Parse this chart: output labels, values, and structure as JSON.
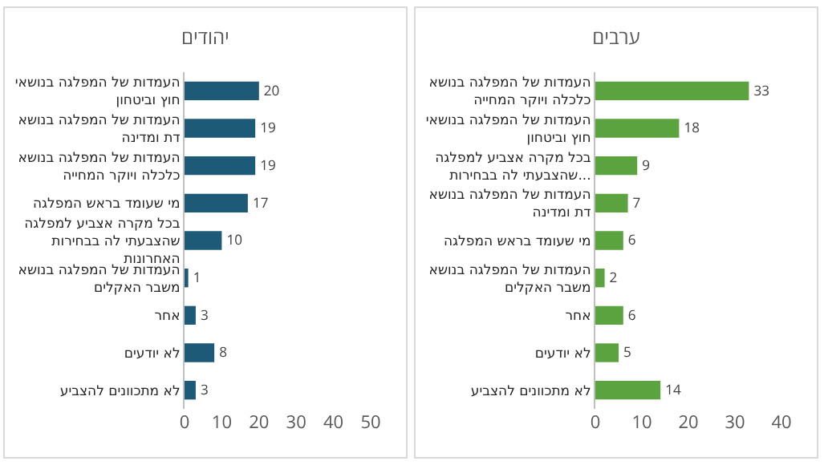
{
  "chart_data": [
    {
      "type": "bar",
      "orientation": "horizontal",
      "title": "יהודים",
      "categories": [
        "העמדות של המפלגה בנושאי חוץ וביטחון",
        "העמדות של המפלגה בנושא דת ומדינה",
        "העמדות של המפלגה בנושא כלכלה ויוקר המחייה",
        "מי שעומד בראש המפלגה",
        "בכל מקרה אצביע למפלגה שהצבעתי לה בבחירות האחרונות",
        "העמדות של המפלגה בנושא משבר האקלים",
        "אחר",
        "לא יודעים",
        "לא מתכוונים להצביע"
      ],
      "values": [
        20,
        19,
        19,
        17,
        10,
        1,
        3,
        8,
        3
      ],
      "color": "#1d5a78",
      "xlim": [
        0,
        50
      ],
      "xticks": [
        0,
        10,
        20,
        30,
        40,
        50
      ],
      "data_labels": true,
      "grid": false,
      "legend": false
    },
    {
      "type": "bar",
      "orientation": "horizontal",
      "title": "ערבים",
      "categories": [
        "העמדות של המפלגה בנושא כלכלה ויוקר המחייה",
        "העמדות של המפלגה בנושאי חוץ וביטחון",
        "בכל מקרה אצביע למפלגה שהצבעתי לה בבחירות...",
        "העמדות של המפלגה בנושא דת ומדינה",
        "מי שעומד בראש המפלגה",
        "העמדות של המפלגה בנושא משבר האקלים",
        "אחר",
        "לא יודעים",
        "לא מתכוונים להצביע"
      ],
      "values": [
        33,
        18,
        9,
        7,
        6,
        2,
        6,
        5,
        14
      ],
      "color": "#5ba33e",
      "xlim": [
        0,
        40
      ],
      "xticks": [
        0,
        10,
        20,
        30,
        40
      ],
      "data_labels": true,
      "grid": false,
      "legend": false
    }
  ]
}
